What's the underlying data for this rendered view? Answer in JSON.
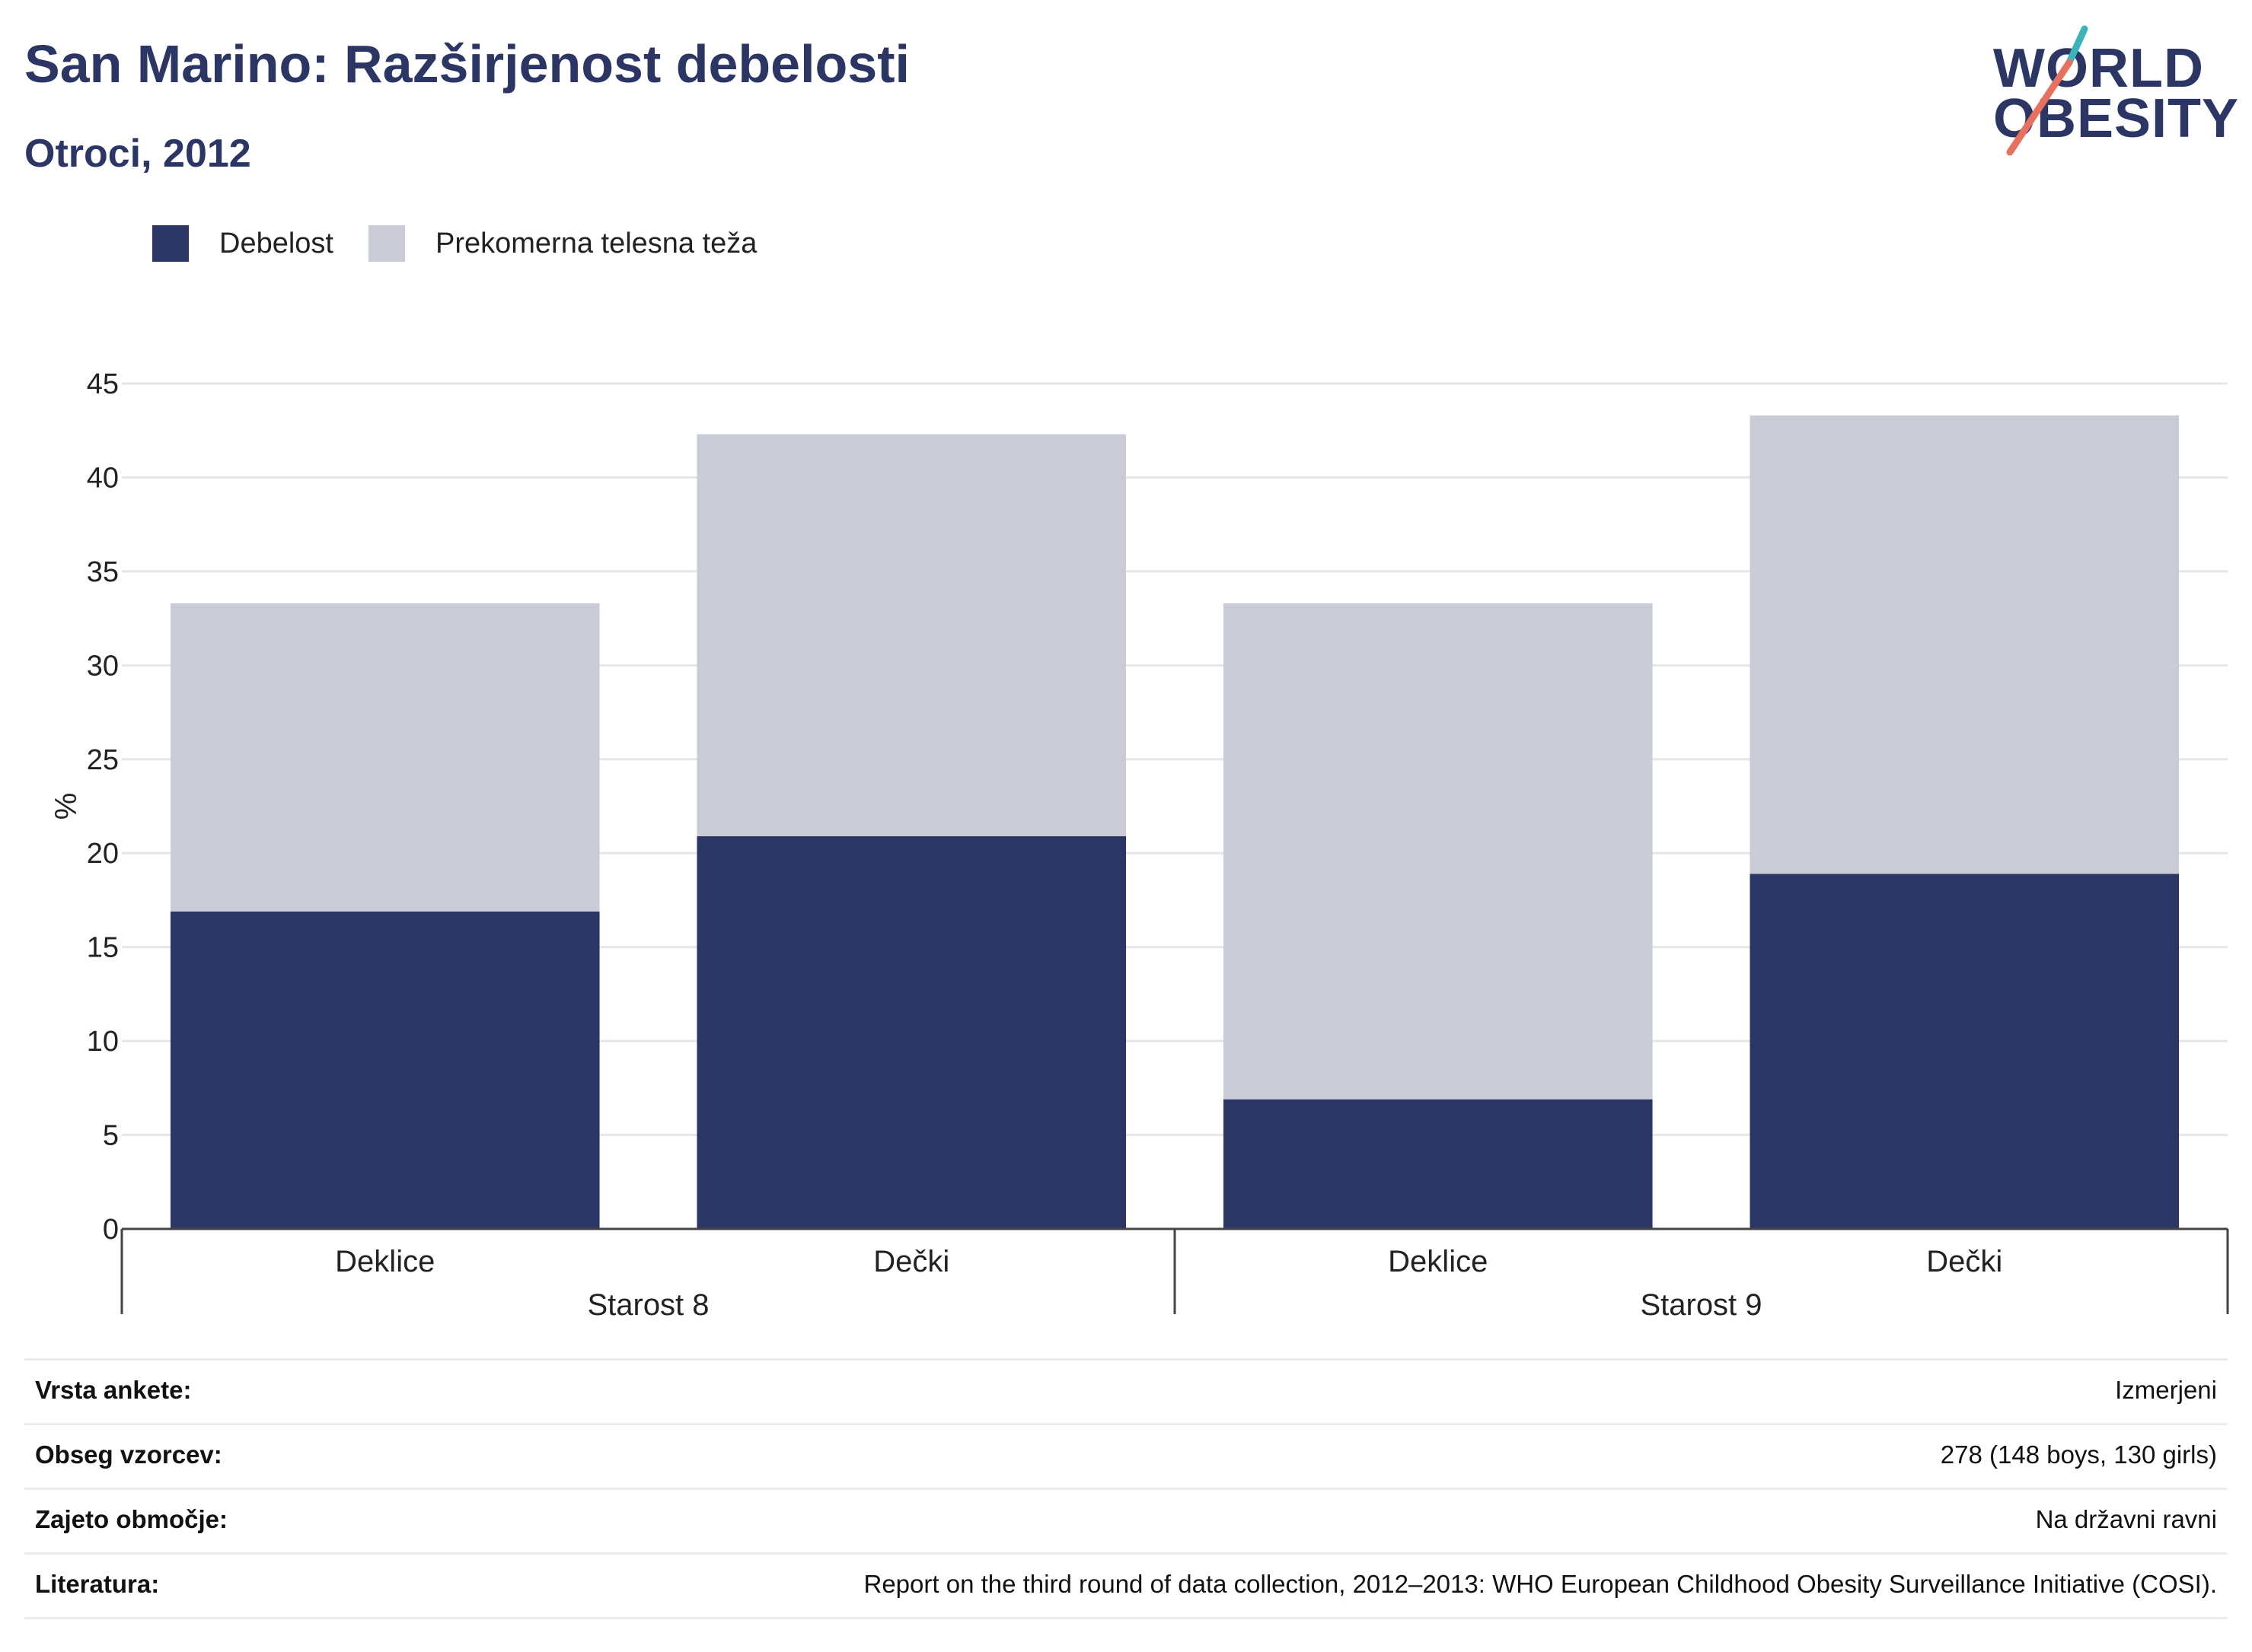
{
  "header": {
    "title": "San Marino: Razširjenost debelosti",
    "subtitle": "Otroci, 2012"
  },
  "logo": {
    "line1": "WORLD",
    "line2": "OBESITY",
    "accent_teal": "#3bb3b8",
    "accent_coral": "#e8705e"
  },
  "legend": {
    "items": [
      {
        "label": "Debelost",
        "color": "#2b3664"
      },
      {
        "label": "Prekomerna telesna teža",
        "color": "#c9cbd7"
      }
    ]
  },
  "chart_data": {
    "type": "bar",
    "stacked": true,
    "ylabel": "%",
    "ylim": [
      0,
      45
    ],
    "yticks": [
      0,
      5,
      10,
      15,
      20,
      25,
      30,
      35,
      40,
      45
    ],
    "grid": true,
    "legend_position": "top-left",
    "categories": [
      "Deklice",
      "Dečki",
      "Deklice",
      "Dečki"
    ],
    "groups": [
      {
        "label": "Starost 8",
        "categories": [
          "Deklice",
          "Dečki"
        ]
      },
      {
        "label": "Starost 9",
        "categories": [
          "Deklice",
          "Dečki"
        ]
      }
    ],
    "series": [
      {
        "name": "Debelost",
        "color": "#2b3664",
        "values": [
          16.9,
          20.9,
          6.9,
          18.9
        ]
      },
      {
        "name": "Prekomerna telesna teža",
        "color": "#c9cbd7",
        "values": [
          16.4,
          21.4,
          26.4,
          24.4
        ]
      }
    ]
  },
  "info_table": {
    "rows": [
      {
        "key": "Vrsta ankete:",
        "value": "Izmerjeni"
      },
      {
        "key": "Obseg vzorcev:",
        "value": "278 (148 boys, 130 girls)"
      },
      {
        "key": "Zajeto območje:",
        "value": "Na državni ravni"
      },
      {
        "key": "Literatura:",
        "value": "Report on the third round of data collection, 2012–2013: WHO European Childhood Obesity Surveillance Initiative (COSI)."
      }
    ]
  }
}
